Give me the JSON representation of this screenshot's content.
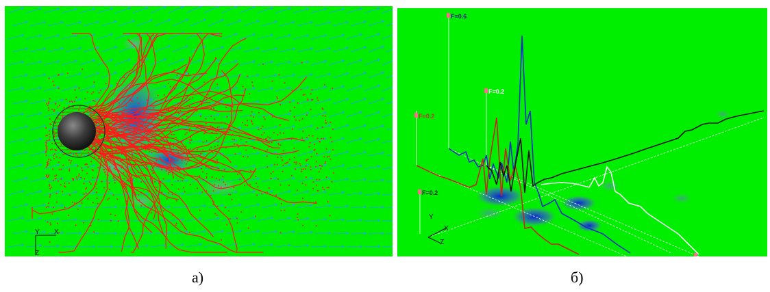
{
  "captions": {
    "a": "а)",
    "b": "б)"
  },
  "panel_a": {
    "axis_labels": {
      "y": "Y",
      "x": "X",
      "z": "Z"
    },
    "colors": {
      "background": "#00ee00",
      "vectors": "#2a9bff",
      "tracks": "#ff1a1a",
      "sphere": "#333333",
      "cloud": "#1a3dff"
    }
  },
  "panel_b": {
    "axis_labels": {
      "y": "Y",
      "x": "X",
      "z": "Z"
    },
    "markers": [
      {
        "text": "F=0.6",
        "color": "#1a1a8c"
      },
      {
        "text": "F=0.2",
        "color": "#ffffff"
      },
      {
        "text": "F=0.2",
        "color": "#c0392b"
      },
      {
        "text": "F=0.2",
        "color": "#222222"
      }
    ],
    "colors": {
      "background": "#00ee00",
      "curve_blue": "#1030c0",
      "curve_red": "#c0281a",
      "curve_black": "#111111",
      "curve_white": "#f5f5f5"
    }
  }
}
